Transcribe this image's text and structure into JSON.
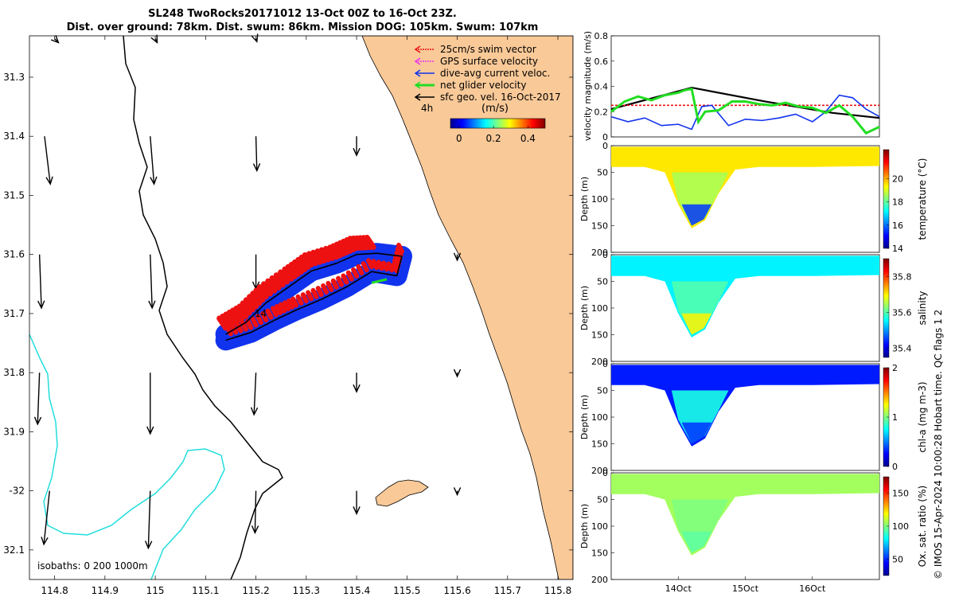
{
  "figure": {
    "title_line1": "SL248 TwoRocks20171012 13-Oct 00Z to 16-Oct 23Z.",
    "title_line2": "Dist. over ground: 78km. Dist. swum: 86km. Mission DOG: 105km. Swum: 107km",
    "watermark": "© IMOS 15-Apr-2024 10:00:28 Hobart time. QC flags 1  2",
    "colors": {
      "land": "#f9c998",
      "isobath_0": "#000000",
      "isobath_200": "#000000",
      "isobath_1000": "#22dddd",
      "swim": "#ee1111",
      "dive_avg": "#1133ee",
      "net": "#22dd22",
      "geo": "#000000",
      "gps": "#ee33ee"
    }
  },
  "chart_data": [
    {
      "type": "map",
      "name": "glider track map",
      "xlim": [
        114.75,
        115.83
      ],
      "ylim": [
        -32.15,
        -31.23
      ],
      "x_ticks": [
        114.8,
        114.9,
        115,
        115.1,
        115.2,
        115.3,
        115.4,
        115.5,
        115.6,
        115.7,
        115.8
      ],
      "x_tick_labels": [
        "114.8",
        "114.9",
        "115",
        "115.1",
        "115.2",
        "115.3",
        "115.4",
        "115.5",
        "115.6",
        "115.7",
        "115.8"
      ],
      "y_ticks": [
        -31.3,
        -31.4,
        -31.5,
        -31.6,
        -31.7,
        -31.8,
        -31.9,
        -32,
        -32.1
      ],
      "y_tick_labels": [
        "31.3",
        "31.4",
        "31.5",
        "31.6",
        "31.7",
        "31.8",
        "31.9",
        "-32",
        "32.1"
      ],
      "legend": [
        {
          "label": "25cm/s swim vector",
          "color": "#ee1111"
        },
        {
          "label": "GPS surface velocity",
          "color": "#ee33ee"
        },
        {
          "label": "dive-avg current veloc.",
          "color": "#1133ee"
        },
        {
          "label": "net glider velocity",
          "color": "#22dd22"
        },
        {
          "label": "sfc geo. vel. 16-Oct-2017",
          "color": "#000000"
        }
      ],
      "legend_tag": "4h",
      "colorbar": {
        "label": "(m/s)",
        "ticks": [
          0,
          0.2,
          0.4
        ],
        "tick_labels": [
          "0",
          "0.2",
          "0.4"
        ],
        "range": [
          -0.05,
          0.5
        ]
      },
      "track_label": "14",
      "isobath_note": "isobaths: 0   200  1000m",
      "glider_track": [
        [
          115.14,
          -31.735
        ],
        [
          115.18,
          -31.715
        ],
        [
          115.22,
          -31.682
        ],
        [
          115.27,
          -31.652
        ],
        [
          115.31,
          -31.628
        ],
        [
          115.36,
          -31.615
        ],
        [
          115.4,
          -31.6
        ],
        [
          115.44,
          -31.598
        ],
        [
          115.49,
          -31.603
        ],
        [
          115.48,
          -31.636
        ],
        [
          115.43,
          -31.629
        ],
        [
          115.38,
          -31.655
        ],
        [
          115.33,
          -31.676
        ],
        [
          115.28,
          -31.694
        ],
        [
          115.24,
          -31.71
        ],
        [
          115.19,
          -31.732
        ],
        [
          115.14,
          -31.745
        ]
      ],
      "geostrophic_vectors": [
        {
          "lon": 114.8,
          "lat": -31.235,
          "u": 0.02,
          "v": -0.02
        },
        {
          "lon": 115.0,
          "lat": -31.235,
          "u": 0.01,
          "v": -0.02
        },
        {
          "lon": 115.2,
          "lat": -31.235,
          "u": 0.005,
          "v": -0.015
        },
        {
          "lon": 114.78,
          "lat": -31.4,
          "u": 0.03,
          "v": -0.25
        },
        {
          "lon": 114.99,
          "lat": -31.4,
          "u": 0.02,
          "v": -0.25
        },
        {
          "lon": 115.2,
          "lat": -31.4,
          "u": 0.005,
          "v": -0.18
        },
        {
          "lon": 115.4,
          "lat": -31.4,
          "u": 0.0,
          "v": -0.1
        },
        {
          "lon": 114.77,
          "lat": -31.6,
          "u": 0.01,
          "v": -0.28
        },
        {
          "lon": 114.99,
          "lat": -31.6,
          "u": 0.01,
          "v": -0.28
        },
        {
          "lon": 115.2,
          "lat": -31.6,
          "u": 0.0,
          "v": -0.18
        },
        {
          "lon": 115.6,
          "lat": -31.6,
          "u": 0.0,
          "v": -0.03
        },
        {
          "lon": 114.77,
          "lat": -31.8,
          "u": -0.01,
          "v": -0.27
        },
        {
          "lon": 114.99,
          "lat": -31.8,
          "u": 0.0,
          "v": -0.32
        },
        {
          "lon": 115.2,
          "lat": -31.8,
          "u": -0.01,
          "v": -0.22
        },
        {
          "lon": 115.4,
          "lat": -31.8,
          "u": 0.0,
          "v": -0.1
        },
        {
          "lon": 115.6,
          "lat": -31.8,
          "u": 0.0,
          "v": -0.02
        },
        {
          "lon": 114.79,
          "lat": -32.0,
          "u": -0.03,
          "v": -0.28
        },
        {
          "lon": 114.99,
          "lat": -32.0,
          "u": -0.01,
          "v": -0.3
        },
        {
          "lon": 115.2,
          "lat": -32.0,
          "u": -0.005,
          "v": -0.22
        },
        {
          "lon": 115.4,
          "lat": -32.0,
          "u": 0.0,
          "v": -0.12
        },
        {
          "lon": 115.6,
          "lat": -32.0,
          "u": 0.0,
          "v": -0.02
        }
      ]
    },
    {
      "type": "line",
      "name": "velocity magnitude timeseries",
      "ylabel": "velocity magnitude (m/s)",
      "ylim": [
        0,
        0.8
      ],
      "y_ticks": [
        0,
        0.2,
        0.4,
        0.6,
        0.8
      ],
      "y_tick_labels": [
        "0",
        "0.2",
        "0.4",
        "0.6",
        "0.8"
      ],
      "x_range_days": [
        13.0,
        16.999
      ],
      "series": [
        {
          "name": "geostrophic",
          "color": "#000000",
          "x": [
            13.0,
            14.2,
            15.3,
            16.3,
            17.0
          ],
          "y": [
            0.22,
            0.39,
            0.28,
            0.19,
            0.15
          ]
        },
        {
          "name": "swim",
          "color": "#ee1111",
          "x": [
            13.0,
            17.0
          ],
          "y": [
            0.25,
            0.25
          ]
        },
        {
          "name": "dive-avg",
          "color": "#1133ee",
          "x": [
            13.0,
            13.25,
            13.5,
            13.75,
            14.0,
            14.2,
            14.35,
            14.5,
            14.75,
            15.0,
            15.25,
            15.5,
            15.75,
            16.0,
            16.2,
            16.4,
            16.6,
            16.8,
            17.0
          ],
          "y": [
            0.16,
            0.12,
            0.15,
            0.09,
            0.1,
            0.06,
            0.24,
            0.25,
            0.09,
            0.14,
            0.13,
            0.15,
            0.18,
            0.12,
            0.2,
            0.33,
            0.31,
            0.22,
            0.16
          ]
        },
        {
          "name": "net",
          "color": "#22dd22",
          "x": [
            13.0,
            13.2,
            13.4,
            13.6,
            13.8,
            14.0,
            14.1,
            14.2,
            14.3,
            14.4,
            14.6,
            14.8,
            15.0,
            15.2,
            15.4,
            15.6,
            15.8,
            16.0,
            16.2,
            16.4,
            16.6,
            16.8,
            17.0
          ],
          "y": [
            0.2,
            0.28,
            0.32,
            0.29,
            0.33,
            0.35,
            0.37,
            0.38,
            0.12,
            0.2,
            0.21,
            0.28,
            0.28,
            0.26,
            0.25,
            0.27,
            0.24,
            0.23,
            0.19,
            0.25,
            0.16,
            0.03,
            0.08
          ]
        }
      ]
    },
    {
      "type": "heatmap",
      "name": "temperature section",
      "ylabel": "Depth (m)",
      "ylim": [
        0,
        200
      ],
      "y_ticks": [
        0,
        50,
        100,
        150,
        200
      ],
      "y_tick_labels": [
        "0",
        "50",
        "100",
        "150",
        "200"
      ],
      "colorbar": {
        "label": "temperature (°C)",
        "range": [
          14,
          22.5
        ],
        "ticks": [
          14,
          16,
          18,
          20
        ],
        "tick_labels": [
          "14",
          "16",
          "18",
          "20"
        ]
      },
      "depth_profile": [
        [
          13.0,
          40
        ],
        [
          13.5,
          40
        ],
        [
          13.8,
          50
        ],
        [
          14.0,
          110
        ],
        [
          14.2,
          155
        ],
        [
          14.4,
          140
        ],
        [
          14.6,
          90
        ],
        [
          14.85,
          45
        ],
        [
          15.2,
          40
        ],
        [
          16.0,
          40
        ],
        [
          17.0,
          38
        ]
      ],
      "core_value": 18.6,
      "deep_value": 15.5,
      "surface_value": 19.5
    },
    {
      "type": "heatmap",
      "name": "salinity section",
      "ylabel": "Depth (m)",
      "ylim": [
        0,
        200
      ],
      "y_ticks": [
        0,
        50,
        100,
        150,
        200
      ],
      "y_tick_labels": [
        "0",
        "50",
        "100",
        "150",
        "200"
      ],
      "colorbar": {
        "label": "salinity",
        "range": [
          35.35,
          35.9
        ],
        "ticks": [
          35.4,
          35.6,
          35.8
        ],
        "tick_labels": [
          "35.4",
          "35.6",
          "35.8"
        ]
      },
      "depth_profile": [
        [
          13.0,
          40
        ],
        [
          13.5,
          40
        ],
        [
          13.8,
          50
        ],
        [
          14.0,
          110
        ],
        [
          14.2,
          155
        ],
        [
          14.4,
          140
        ],
        [
          14.6,
          90
        ],
        [
          14.85,
          45
        ],
        [
          15.2,
          40
        ],
        [
          16.0,
          40
        ],
        [
          17.0,
          38
        ]
      ],
      "core_value": 35.6,
      "deep_value": 35.7,
      "surface_value": 35.55
    },
    {
      "type": "heatmap",
      "name": "chlorophyll section",
      "ylabel": "Depth (m)",
      "ylim": [
        0,
        200
      ],
      "y_ticks": [
        0,
        50,
        100,
        150,
        200
      ],
      "y_tick_labels": [
        "0",
        "50",
        "100",
        "150",
        "200"
      ],
      "colorbar": {
        "label": "chl-a (mg m-3)",
        "range": [
          0,
          2
        ],
        "ticks": [
          0,
          1,
          2
        ],
        "tick_labels": [
          "0",
          "1",
          "2"
        ]
      },
      "depth_profile": [
        [
          13.0,
          40
        ],
        [
          13.5,
          40
        ],
        [
          13.8,
          50
        ],
        [
          14.0,
          110
        ],
        [
          14.2,
          155
        ],
        [
          14.4,
          140
        ],
        [
          14.6,
          90
        ],
        [
          14.85,
          45
        ],
        [
          15.2,
          40
        ],
        [
          16.0,
          40
        ],
        [
          17.0,
          38
        ]
      ],
      "core_value": 0.8,
      "deep_value": 0.35,
      "surface_value": 0.3
    },
    {
      "type": "heatmap",
      "name": "oxygen saturation section",
      "ylabel": "Depth (m)",
      "ylim": [
        0,
        200
      ],
      "y_ticks": [
        0,
        50,
        100,
        150,
        200
      ],
      "y_tick_labels": [
        "0",
        "50",
        "100",
        "150",
        "200"
      ],
      "x_ticks": [
        14.0,
        15.0,
        16.0
      ],
      "x_tick_labels": [
        "14Oct",
        "15Oct",
        "16Oct"
      ],
      "colorbar": {
        "label": "Ox. sat. ratio (%)",
        "range": [
          25,
          175
        ],
        "ticks": [
          50,
          100,
          150
        ],
        "tick_labels": [
          "50",
          "100",
          "150"
        ]
      },
      "depth_profile": [
        [
          13.0,
          40
        ],
        [
          13.5,
          40
        ],
        [
          13.8,
          50
        ],
        [
          14.0,
          110
        ],
        [
          14.2,
          155
        ],
        [
          14.4,
          140
        ],
        [
          14.6,
          90
        ],
        [
          14.85,
          45
        ],
        [
          15.2,
          40
        ],
        [
          16.0,
          40
        ],
        [
          17.0,
          38
        ]
      ],
      "core_value": 100,
      "deep_value": 95,
      "surface_value": 105
    }
  ]
}
